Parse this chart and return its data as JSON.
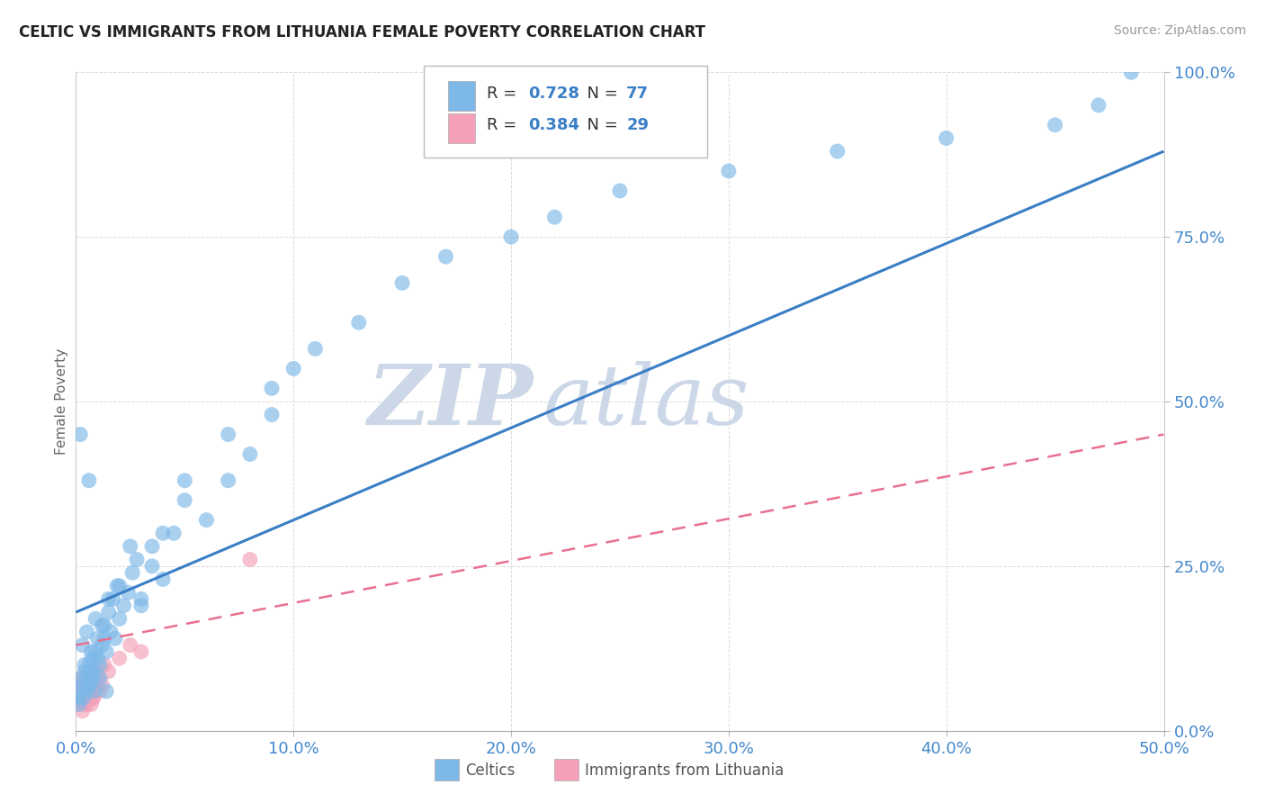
{
  "title": "CELTIC VS IMMIGRANTS FROM LITHUANIA FEMALE POVERTY CORRELATION CHART",
  "source": "Source: ZipAtlas.com",
  "ylabel": "Female Poverty",
  "xlim": [
    0.0,
    50.0
  ],
  "ylim": [
    0.0,
    100.0
  ],
  "xticks": [
    0.0,
    10.0,
    20.0,
    30.0,
    40.0,
    50.0
  ],
  "yticks": [
    0.0,
    25.0,
    50.0,
    75.0,
    100.0
  ],
  "celtics_R": 0.728,
  "celtics_N": 77,
  "lithuania_R": 0.384,
  "lithuania_N": 29,
  "celtics_color": "#7db8e8",
  "lithuania_color": "#f4a0b8",
  "celtics_line_color": "#3a7ec6",
  "lithuania_line_color": "#e87090",
  "watermark_color": "#ccd8e8",
  "background_color": "#ffffff",
  "grid_color": "#cccccc",
  "blue_line_x0": 0.0,
  "blue_line_y0": 18.0,
  "blue_line_x1": 50.0,
  "blue_line_y1": 88.0,
  "pink_line_x0": 0.0,
  "pink_line_y0": 13.0,
  "pink_line_x1": 50.0,
  "pink_line_y1": 45.0,
  "celtics_x": [
    0.1,
    0.15,
    0.2,
    0.25,
    0.3,
    0.35,
    0.4,
    0.5,
    0.55,
    0.6,
    0.65,
    0.7,
    0.75,
    0.8,
    0.85,
    0.9,
    1.0,
    1.1,
    1.2,
    1.3,
    1.4,
    1.5,
    1.6,
    1.7,
    1.8,
    1.9,
    2.0,
    2.2,
    2.4,
    2.6,
    2.8,
    3.0,
    3.5,
    4.0,
    4.5,
    5.0,
    6.0,
    7.0,
    8.0,
    9.0,
    10.0,
    0.3,
    0.4,
    0.5,
    0.6,
    0.7,
    0.8,
    0.9,
    1.0,
    1.1,
    1.2,
    1.3,
    1.4,
    1.5,
    2.0,
    2.5,
    3.0,
    3.5,
    4.0,
    5.0,
    7.0,
    9.0,
    11.0,
    13.0,
    15.0,
    17.0,
    20.0,
    22.0,
    25.0,
    30.0,
    35.0,
    40.0,
    45.0,
    47.0,
    48.5,
    0.2,
    0.6
  ],
  "celtics_y": [
    5,
    4,
    6,
    8,
    7,
    5,
    9,
    6,
    8,
    10,
    7,
    9,
    11,
    8,
    6,
    12,
    14,
    10,
    13,
    16,
    12,
    18,
    15,
    20,
    14,
    22,
    17,
    19,
    21,
    24,
    26,
    20,
    28,
    23,
    30,
    35,
    32,
    38,
    42,
    48,
    55,
    13,
    10,
    15,
    7,
    12,
    9,
    17,
    11,
    8,
    16,
    14,
    6,
    20,
    22,
    28,
    19,
    25,
    30,
    38,
    45,
    52,
    58,
    62,
    68,
    72,
    75,
    78,
    82,
    85,
    88,
    90,
    92,
    95,
    100,
    45,
    38
  ],
  "lithuania_x": [
    0.05,
    0.1,
    0.15,
    0.2,
    0.25,
    0.3,
    0.35,
    0.4,
    0.5,
    0.55,
    0.6,
    0.65,
    0.7,
    0.75,
    0.8,
    0.9,
    1.0,
    1.1,
    1.2,
    1.3,
    1.5,
    2.0,
    2.5,
    3.0,
    0.3,
    0.5,
    0.6,
    0.8,
    8.0
  ],
  "lithuania_y": [
    6,
    5,
    4,
    7,
    6,
    8,
    5,
    4,
    7,
    5,
    6,
    8,
    4,
    7,
    5,
    9,
    8,
    6,
    7,
    10,
    9,
    11,
    13,
    12,
    3,
    4,
    6,
    5,
    26
  ]
}
